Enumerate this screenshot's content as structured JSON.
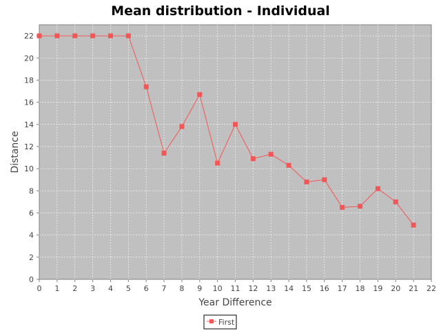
{
  "chart_data": {
    "type": "line",
    "title": "Mean distribution - Individual",
    "xlabel": "Year Difference",
    "ylabel": "Distance",
    "xlim": [
      0,
      22
    ],
    "ylim": [
      0,
      23
    ],
    "x_ticks": [
      0,
      1,
      2,
      3,
      4,
      5,
      6,
      7,
      8,
      9,
      10,
      11,
      12,
      13,
      14,
      15,
      16,
      17,
      18,
      19,
      20,
      21,
      22
    ],
    "y_ticks": [
      0,
      2,
      4,
      6,
      8,
      10,
      12,
      14,
      16,
      18,
      20,
      22
    ],
    "grid": true,
    "legend_position": "bottom-center",
    "series": [
      {
        "name": "First",
        "color": "#f25757",
        "marker": "square",
        "x": [
          0,
          1,
          2,
          3,
          4,
          5,
          6,
          7,
          8,
          9,
          10,
          11,
          12,
          13,
          14,
          15,
          16,
          17,
          18,
          19,
          20,
          21
        ],
        "y": [
          22,
          22,
          22,
          22,
          22,
          22,
          17.4,
          11.4,
          13.8,
          16.7,
          10.5,
          14.0,
          10.9,
          11.3,
          10.3,
          8.8,
          9.0,
          6.5,
          6.6,
          8.2,
          7.0,
          4.9
        ]
      }
    ]
  },
  "colors": {
    "plot_background": "#c0c0c0",
    "grid": "#ffffff",
    "axis": "#808080",
    "text": "#444444"
  }
}
